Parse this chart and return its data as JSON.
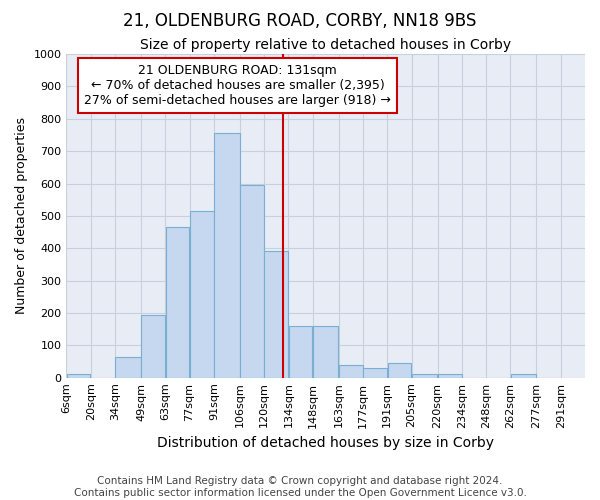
{
  "title": "21, OLDENBURG ROAD, CORBY, NN18 9BS",
  "subtitle": "Size of property relative to detached houses in Corby",
  "xlabel": "Distribution of detached houses by size in Corby",
  "ylabel": "Number of detached properties",
  "footer_line1": "Contains HM Land Registry data © Crown copyright and database right 2024.",
  "footer_line2": "Contains public sector information licensed under the Open Government Licence v3.0.",
  "annotation_title": "21 OLDENBURG ROAD: 131sqm",
  "annotation_line2": "← 70% of detached houses are smaller (2,395)",
  "annotation_line3": "27% of semi-detached houses are larger (918) →",
  "bar_left_edges": [
    6,
    20,
    34,
    49,
    63,
    77,
    91,
    106,
    120,
    134,
    148,
    163,
    177,
    191,
    205,
    220,
    234,
    248,
    262,
    277
  ],
  "bar_widths": [
    14,
    14,
    15,
    14,
    14,
    14,
    15,
    14,
    14,
    14,
    15,
    14,
    14,
    14,
    15,
    14,
    14,
    14,
    15,
    14
  ],
  "bar_heights": [
    10,
    0,
    65,
    195,
    465,
    515,
    755,
    595,
    390,
    160,
    160,
    40,
    30,
    45,
    10,
    10,
    0,
    0,
    10,
    0
  ],
  "bar_color": "#c5d8ef",
  "bar_edge_color": "#7aafd4",
  "bar_edge_width": 0.8,
  "tick_labels": [
    "6sqm",
    "20sqm",
    "34sqm",
    "49sqm",
    "63sqm",
    "77sqm",
    "91sqm",
    "106sqm",
    "120sqm",
    "134sqm",
    "148sqm",
    "163sqm",
    "177sqm",
    "191sqm",
    "205sqm",
    "220sqm",
    "234sqm",
    "248sqm",
    "262sqm",
    "277sqm",
    "291sqm"
  ],
  "ylim": [
    0,
    1000
  ],
  "yticks": [
    0,
    100,
    200,
    300,
    400,
    500,
    600,
    700,
    800,
    900,
    1000
  ],
  "grid_color": "#c8d0de",
  "background_color": "#e8edf5",
  "vline_color": "#cc0000",
  "vline_x": 131,
  "annotation_box_color": "#cc0000",
  "title_fontsize": 12,
  "subtitle_fontsize": 10,
  "xlabel_fontsize": 10,
  "ylabel_fontsize": 9,
  "tick_fontsize": 8,
  "annotation_fontsize": 9,
  "footer_fontsize": 7.5
}
